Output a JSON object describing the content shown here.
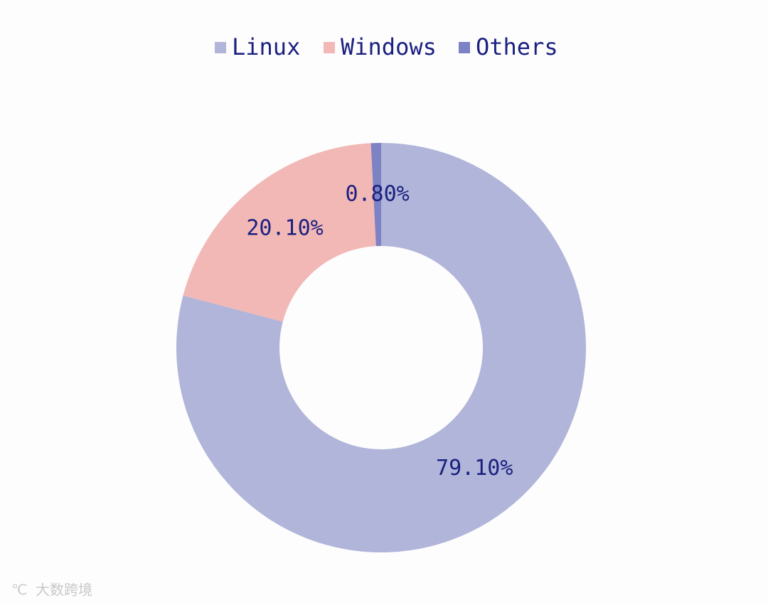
{
  "chart_data": {
    "type": "donut",
    "categories": [
      "Linux",
      "Windows",
      "Others"
    ],
    "values": [
      79.1,
      20.1,
      0.8
    ],
    "value_labels": [
      "79.10%",
      "20.10%",
      "0.80%"
    ],
    "colors": [
      "#b0b5d9",
      "#f2b8b5",
      "#7c82c4"
    ],
    "legend": "top",
    "watermark": "大数跨境"
  }
}
